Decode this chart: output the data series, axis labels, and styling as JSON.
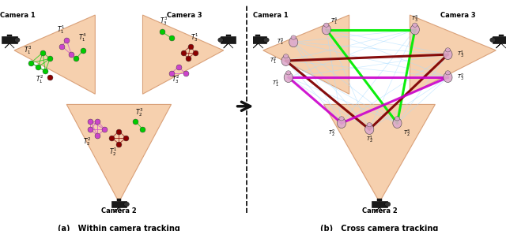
{
  "fig_width": 6.4,
  "fig_height": 2.93,
  "dpi": 100,
  "bg_color": "#ffffff",
  "fov_color": "#f5c8a0",
  "fov_alpha": 0.85,
  "panel_a_title": "(a)   Within camera tracking",
  "panel_b_title": "(b)   Cross camera tracking",
  "colors": {
    "green": "#00cc00",
    "dark_red": "#8b0000",
    "purple": "#cc44cc",
    "light_blue": "#aaddff",
    "magenta": "#dd44dd",
    "bright_green": "#00ff00",
    "dark_maroon": "#660000"
  },
  "cam1_label": "Camera 1",
  "cam2_label": "Camera 2",
  "cam3_label": "Camera 3"
}
